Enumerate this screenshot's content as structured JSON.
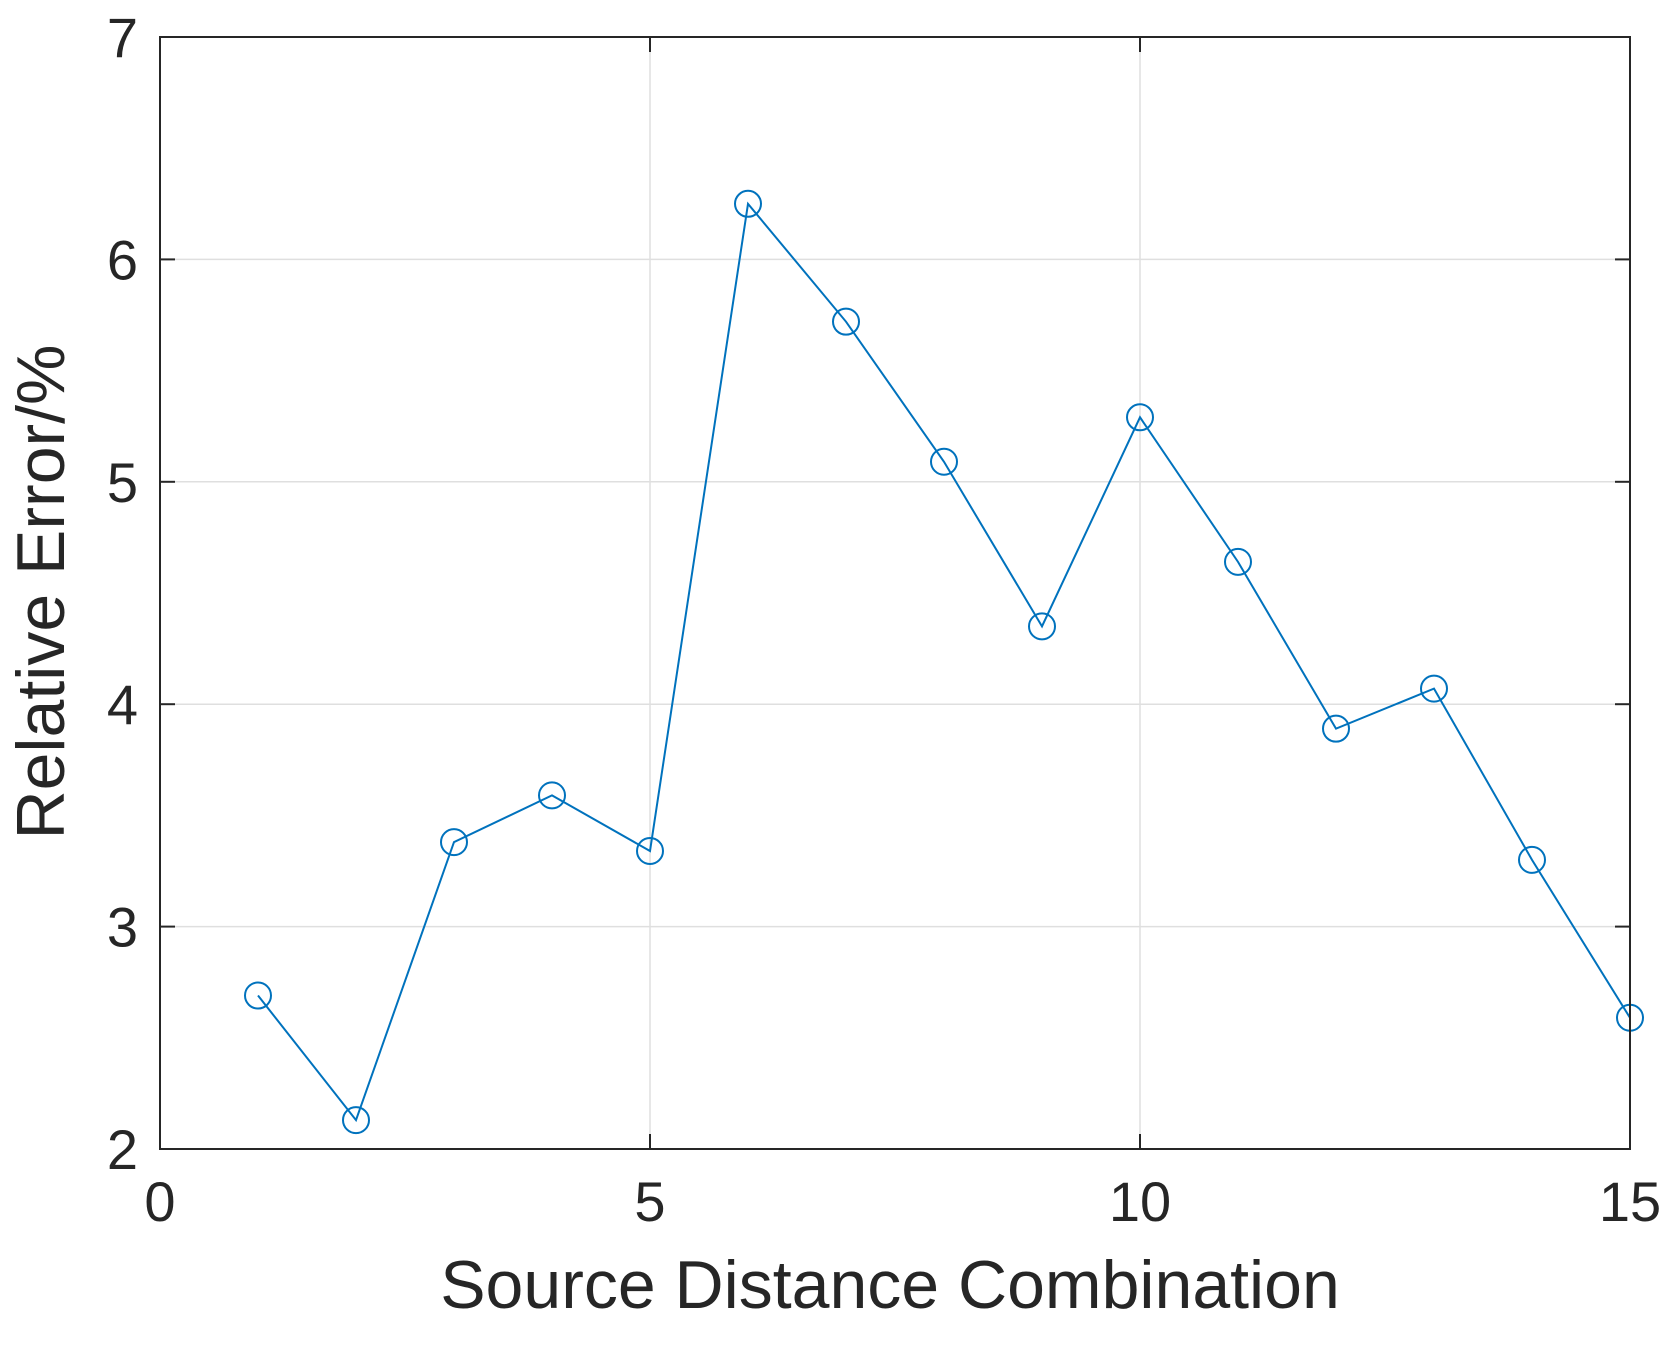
{
  "chart_data": {
    "type": "line",
    "title": "",
    "xlabel": "Source Distance Combination",
    "ylabel": "Relative Error/%",
    "xlim": [
      0,
      15
    ],
    "ylim": [
      2,
      7
    ],
    "xticks": [
      0,
      5,
      10,
      15
    ],
    "yticks": [
      2,
      3,
      4,
      5,
      6,
      7
    ],
    "grid": true,
    "legend": "none",
    "series": [
      {
        "marker": "circle",
        "color": "#0072BD",
        "x": [
          1,
          2,
          3,
          4,
          5,
          6,
          7,
          8,
          9,
          10,
          11,
          12,
          13,
          14,
          15
        ],
        "values": [
          2.69,
          2.13,
          3.38,
          3.59,
          3.34,
          6.25,
          5.72,
          5.09,
          4.35,
          5.29,
          4.64,
          3.89,
          4.07,
          3.3,
          2.59
        ]
      }
    ]
  }
}
